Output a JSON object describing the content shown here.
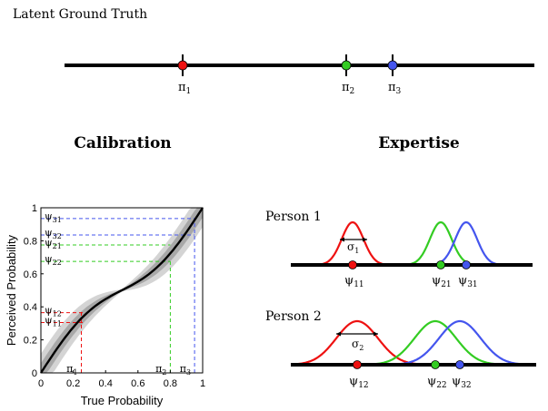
{
  "top": {
    "title": "Latent Ground Truth",
    "markers": [
      {
        "sym": "π",
        "sub": "1",
        "color": "#ee1111"
      },
      {
        "sym": "π",
        "sub": "2",
        "color": "#33cc22"
      },
      {
        "sym": "π",
        "sub": "3",
        "color": "#4455ee"
      }
    ]
  },
  "calibration": {
    "heading": "Calibration",
    "xlabel": "True Probability",
    "ylabel": "Perceived Probability",
    "xticks": [
      "0",
      "0.2",
      "0.4",
      "0.6",
      "0.8",
      "1"
    ],
    "yticks": [
      "0",
      "0.2",
      "0.4",
      "0.6",
      "0.8",
      "1"
    ],
    "x_markers": [
      {
        "sym": "π",
        "sub": "1",
        "value": 0.25,
        "color": "#ee1111"
      },
      {
        "sym": "π",
        "sub": "2",
        "value": 0.8,
        "color": "#33cc22"
      },
      {
        "sym": "π",
        "sub": "3",
        "value": 0.95,
        "color": "#4455ee"
      }
    ],
    "y_markers": [
      {
        "sym": "ψ",
        "sub": "31",
        "value": 0.935,
        "color": "#4455ee"
      },
      {
        "sym": "ψ",
        "sub": "32",
        "value": 0.835,
        "color": "#4455ee"
      },
      {
        "sym": "ψ",
        "sub": "21",
        "value": 0.775,
        "color": "#33cc22"
      },
      {
        "sym": "ψ",
        "sub": "22",
        "value": 0.675,
        "color": "#33cc22"
      },
      {
        "sym": "ψ",
        "sub": "12",
        "value": 0.365,
        "color": "#ee1111"
      },
      {
        "sym": "ψ",
        "sub": "11",
        "value": 0.305,
        "color": "#ee1111"
      }
    ]
  },
  "expertise": {
    "heading": "Expertise",
    "persons": [
      {
        "label": "Person 1",
        "sigma": {
          "sym": "σ",
          "sub": "1"
        },
        "labels": [
          {
            "sym": "ψ",
            "sub": "11",
            "color": "#ee1111"
          },
          {
            "sym": "ψ",
            "sub": "21",
            "color": "#33cc22"
          },
          {
            "sym": "ψ",
            "sub": "31",
            "color": "#4455ee"
          }
        ]
      },
      {
        "label": "Person 2",
        "sigma": {
          "sym": "σ",
          "sub": "2"
        },
        "labels": [
          {
            "sym": "ψ",
            "sub": "12",
            "color": "#ee1111"
          },
          {
            "sym": "ψ",
            "sub": "22",
            "color": "#33cc22"
          },
          {
            "sym": "ψ",
            "sub": "32",
            "color": "#4455ee"
          }
        ]
      }
    ]
  }
}
